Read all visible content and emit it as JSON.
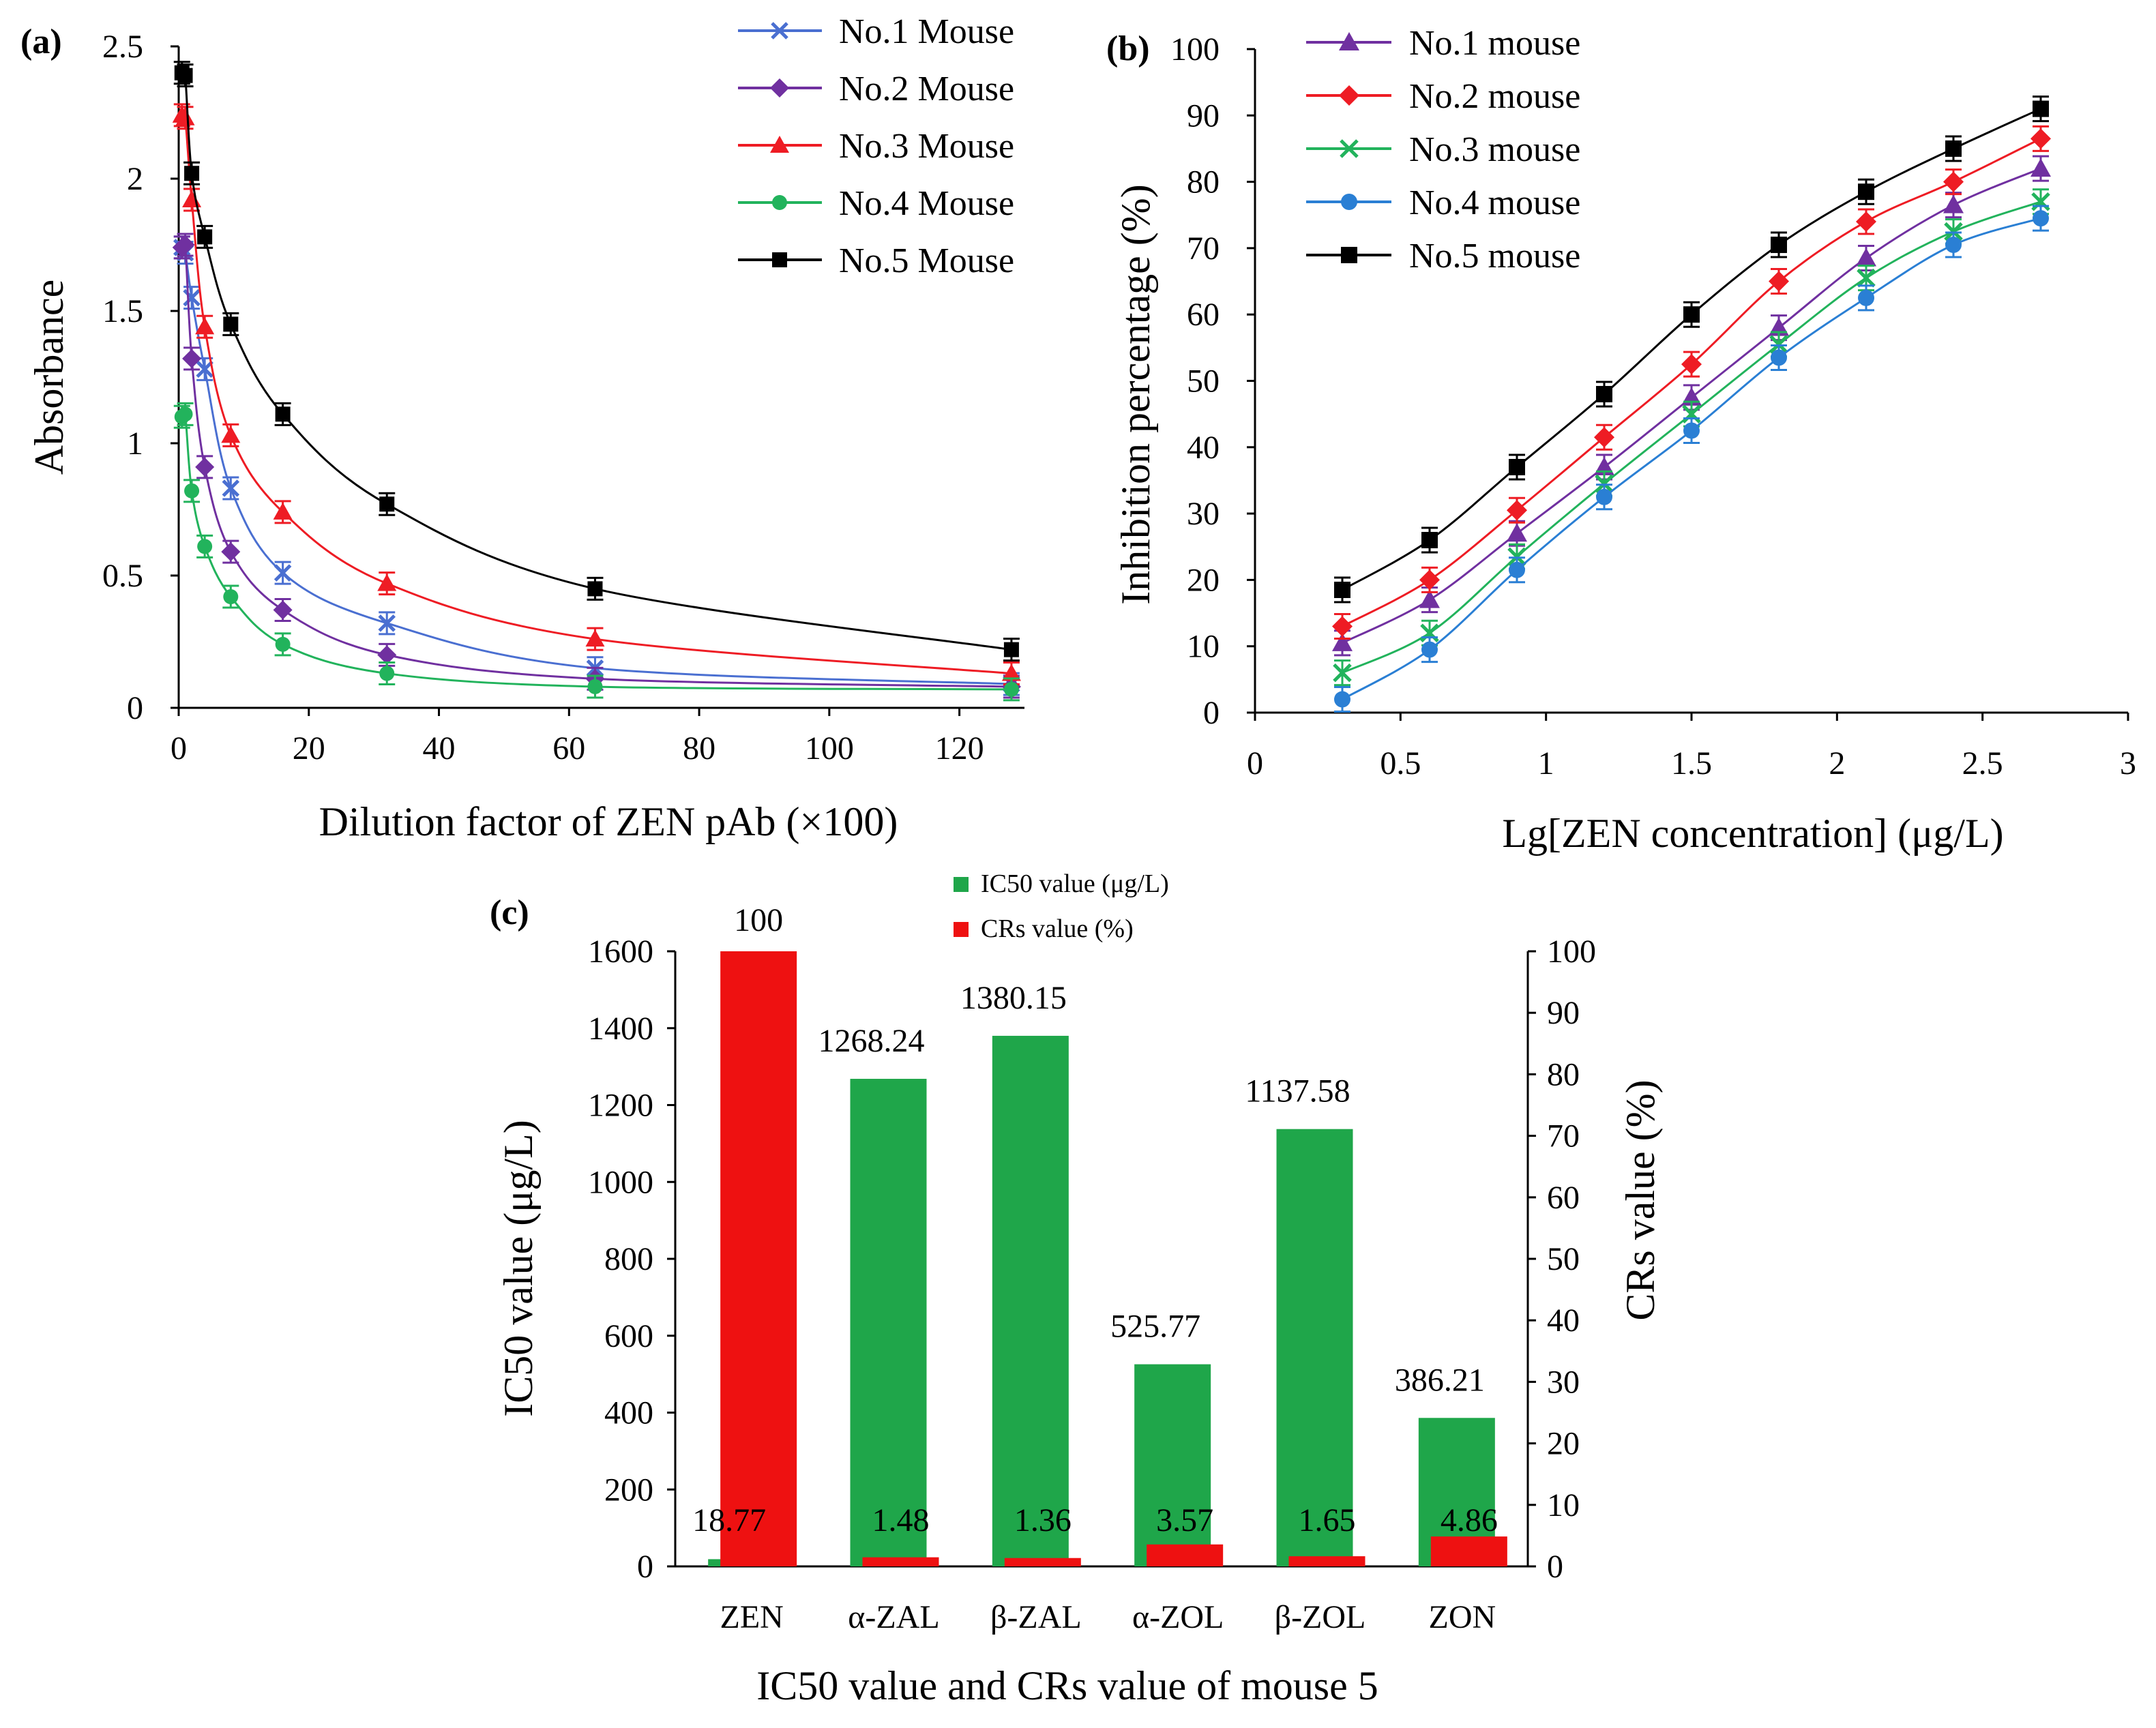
{
  "colors": {
    "mouse1_a": "#4a6fd1",
    "mouse2_a": "#7030a0",
    "mouse3_a": "#ee1c24",
    "mouse4_a": "#22b35c",
    "mouse5_a": "#000000",
    "mouse1_b": "#7030a0",
    "mouse2_b": "#ee1c24",
    "mouse3_b": "#22b35c",
    "mouse4_b": "#2a7fd4",
    "mouse5_b": "#000000",
    "ic50": "#1fa64a",
    "crs": "#ee1111"
  },
  "chart_data": [
    {
      "panel": "(a)",
      "type": "line",
      "xlabel": "Dilution factor of ZEN pAb (×100)",
      "ylabel": "Absorbance",
      "xlim": [
        0,
        130
      ],
      "ylim": [
        0,
        2.5
      ],
      "xticks": [
        "0",
        "20",
        "40",
        "60",
        "80",
        "100",
        "120"
      ],
      "yticks": [
        "0",
        "0.5",
        "1",
        "1.5",
        "2",
        "2.5"
      ],
      "legend_position": "top-right",
      "series": [
        {
          "name": "No.1 Mouse",
          "color_key": "mouse1_a",
          "marker": "x",
          "x": [
            0.5,
            1,
            2,
            4,
            8,
            16,
            32,
            64,
            128
          ],
          "y": [
            1.74,
            1.72,
            1.55,
            1.28,
            0.83,
            0.51,
            0.32,
            0.15,
            0.09
          ]
        },
        {
          "name": "No.2 Mouse",
          "color_key": "mouse2_a",
          "marker": "diamond",
          "x": [
            0.5,
            1,
            2,
            4,
            8,
            16,
            32,
            64,
            128
          ],
          "y": [
            1.74,
            1.75,
            1.32,
            0.91,
            0.59,
            0.37,
            0.2,
            0.11,
            0.08
          ]
        },
        {
          "name": "No.3 Mouse",
          "color_key": "mouse3_a",
          "marker": "triangle",
          "x": [
            0.5,
            1,
            2,
            4,
            8,
            16,
            32,
            64,
            128
          ],
          "y": [
            2.24,
            2.23,
            1.92,
            1.44,
            1.03,
            0.74,
            0.47,
            0.26,
            0.13
          ]
        },
        {
          "name": "No.4 Mouse",
          "color_key": "mouse4_a",
          "marker": "circle",
          "x": [
            0.5,
            1,
            2,
            4,
            8,
            16,
            32,
            64,
            128
          ],
          "y": [
            1.1,
            1.11,
            0.82,
            0.61,
            0.42,
            0.24,
            0.13,
            0.08,
            0.07
          ]
        },
        {
          "name": "No.5 Mouse",
          "color_key": "mouse5_a",
          "marker": "square",
          "x": [
            0.5,
            1,
            2,
            4,
            8,
            16,
            32,
            64,
            128
          ],
          "y": [
            2.4,
            2.39,
            2.02,
            1.78,
            1.45,
            1.11,
            0.77,
            0.45,
            0.22
          ]
        }
      ]
    },
    {
      "panel": "(b)",
      "type": "line",
      "xlabel": "Lg[ZEN concentration] (μg/L)",
      "ylabel": "Inhibition percentage (%)",
      "xlim": [
        0,
        3
      ],
      "ylim": [
        0,
        100
      ],
      "xticks": [
        "0",
        "0.5",
        "1",
        "1.5",
        "2",
        "2.5",
        "3"
      ],
      "yticks": [
        "0",
        "10",
        "20",
        "30",
        "40",
        "50",
        "60",
        "70",
        "80",
        "90",
        "100"
      ],
      "legend_position": "top-left",
      "series": [
        {
          "name": "No.1 mouse",
          "color_key": "mouse1_b",
          "marker": "triangle",
          "x": [
            0.3,
            0.6,
            0.9,
            1.2,
            1.5,
            1.8,
            2.1,
            2.4,
            2.7
          ],
          "y": [
            10.5,
            17,
            27,
            37,
            47.5,
            58,
            68.5,
            76.5,
            82
          ]
        },
        {
          "name": "No.2 mouse",
          "color_key": "mouse2_b",
          "marker": "diamond",
          "x": [
            0.3,
            0.6,
            0.9,
            1.2,
            1.5,
            1.8,
            2.1,
            2.4,
            2.7
          ],
          "y": [
            13,
            20,
            30.5,
            41.5,
            52.5,
            65,
            74,
            80,
            86.5
          ]
        },
        {
          "name": "No.3 mouse",
          "color_key": "mouse3_b",
          "marker": "x",
          "x": [
            0.3,
            0.6,
            0.9,
            1.2,
            1.5,
            1.8,
            2.1,
            2.4,
            2.7
          ],
          "y": [
            6,
            12,
            23.5,
            34.5,
            45,
            55.5,
            65.5,
            72.5,
            77
          ]
        },
        {
          "name": "No.4 mouse",
          "color_key": "mouse4_b",
          "marker": "circle",
          "x": [
            0.3,
            0.6,
            0.9,
            1.2,
            1.5,
            1.8,
            2.1,
            2.4,
            2.7
          ],
          "y": [
            2,
            9.5,
            21.5,
            32.5,
            42.5,
            53.5,
            62.5,
            70.5,
            74.5
          ]
        },
        {
          "name": "No.5 mouse",
          "color_key": "mouse5_b",
          "marker": "square",
          "x": [
            0.3,
            0.6,
            0.9,
            1.2,
            1.5,
            1.8,
            2.1,
            2.4,
            2.7
          ],
          "y": [
            18.5,
            26,
            37,
            48,
            60,
            70.5,
            78.5,
            85,
            91
          ]
        }
      ]
    },
    {
      "panel": "(c)",
      "type": "bar",
      "title": "IC50 value and CRs value of mouse 5",
      "ylabel": "IC50 value (μg/L)",
      "y2label": "CRs value (%)",
      "categories": [
        "ZEN",
        "α-ZAL",
        "β-ZAL",
        "α-ZOL",
        "β-ZOL",
        "ZON"
      ],
      "ylim": [
        0,
        1600
      ],
      "y2lim": [
        0,
        100
      ],
      "yticks": [
        "0",
        "200",
        "400",
        "600",
        "800",
        "1000",
        "1200",
        "1400",
        "1600"
      ],
      "y2ticks": [
        "0",
        "10",
        "20",
        "30",
        "40",
        "50",
        "60",
        "70",
        "80",
        "90",
        "100"
      ],
      "legend_position": "top-center",
      "series": [
        {
          "name": "IC50 value  (μg/L)",
          "color_key": "ic50",
          "axis": "left",
          "values": [
            18.77,
            1268.24,
            1380.15,
            525.77,
            1137.58,
            386.21
          ],
          "labels": [
            "18.77",
            "1268.24",
            "1380.15",
            "525.77",
            "1137.58",
            "386.21"
          ]
        },
        {
          "name": "CRs value (%)",
          "color_key": "crs",
          "axis": "right",
          "values": [
            100,
            1.48,
            1.36,
            3.57,
            1.65,
            4.86
          ],
          "labels": [
            "100",
            "1.48",
            "1.36",
            "3.57",
            "1.65",
            "4.86"
          ]
        }
      ]
    }
  ]
}
